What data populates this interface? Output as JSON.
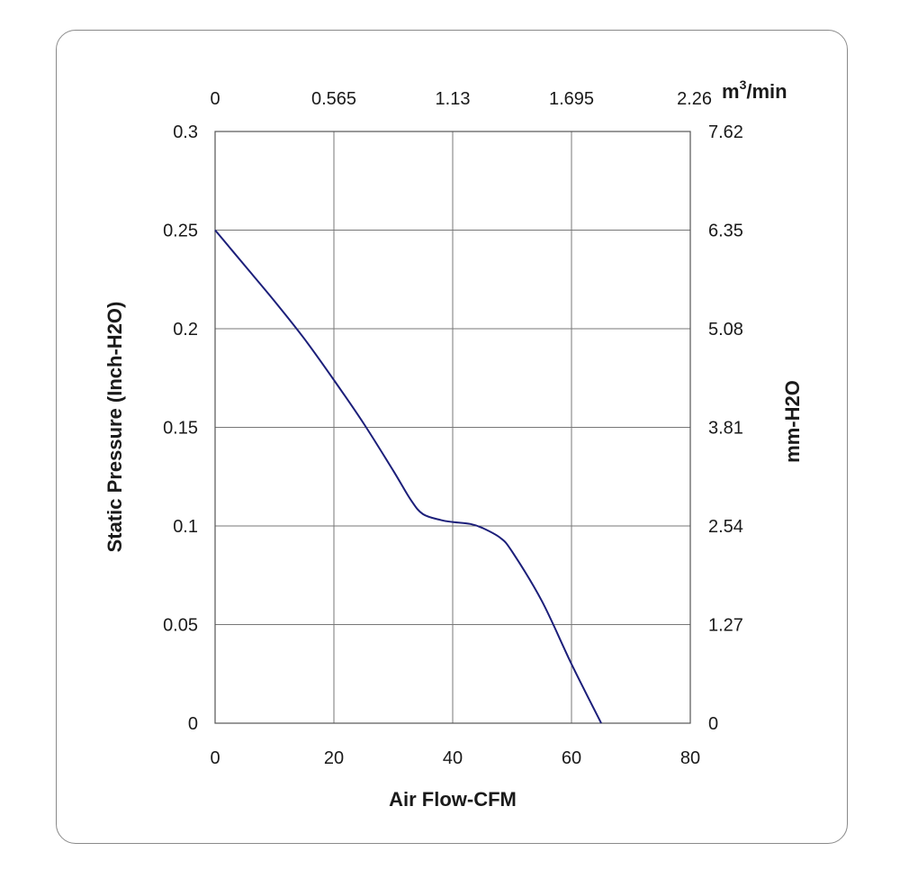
{
  "chart_data": {
    "type": "line",
    "title": "",
    "xlabel": "Air Flow-CFM",
    "ylabel": "Static Pressure (Inch-H2O)",
    "xlim": [
      0,
      80
    ],
    "ylim": [
      0,
      0.3
    ],
    "grid": true,
    "x_ticks": [
      "0",
      "20",
      "40",
      "60",
      "80"
    ],
    "y_ticks": [
      "0",
      "0.05",
      "0.1",
      "0.15",
      "0.2",
      "0.25",
      "0.3"
    ],
    "top_axis": {
      "unit_base": "m",
      "unit_sup": "3",
      "unit_tail": "/min",
      "ticks": [
        "0",
        "0.565",
        "1.13",
        "1.695",
        "2.26"
      ]
    },
    "right_axis": {
      "label": "mm-H2O",
      "ticks": [
        "0",
        "1.27",
        "2.54",
        "3.81",
        "5.08",
        "6.35",
        "7.62"
      ]
    },
    "series": [
      {
        "color": "#1c1f7a",
        "x": [
          0,
          5,
          10,
          15,
          20,
          25,
          30,
          33,
          35,
          38,
          40,
          43,
          45,
          48,
          50,
          55,
          60,
          65
        ],
        "y": [
          0.25,
          0.232,
          0.214,
          0.195,
          0.174,
          0.152,
          0.128,
          0.113,
          0.106,
          0.103,
          0.102,
          0.101,
          0.099,
          0.094,
          0.087,
          0.062,
          0.03,
          0.0
        ]
      }
    ]
  }
}
